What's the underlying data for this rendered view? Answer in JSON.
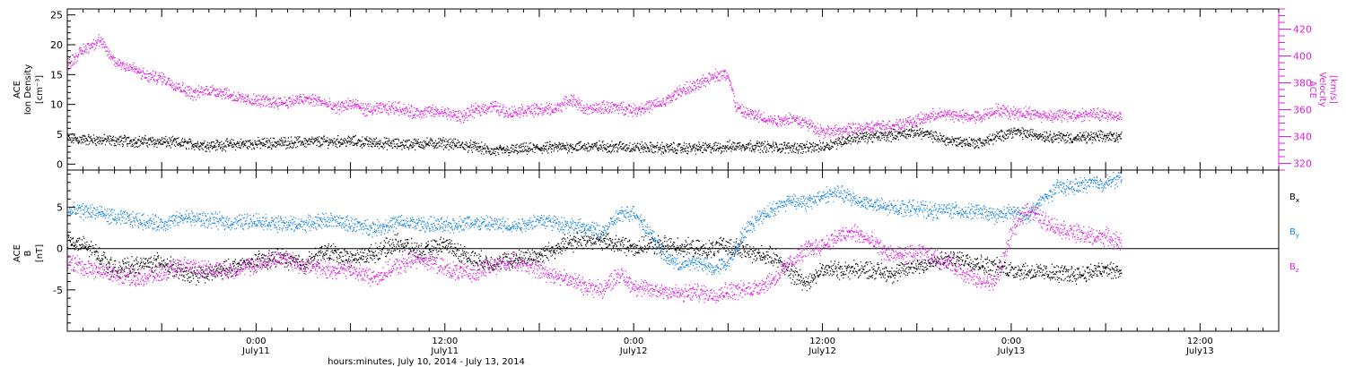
{
  "chart_data": [
    {
      "type": "scatter",
      "panel": "top",
      "left_axis": {
        "label_lines": [
          "ACE",
          "Ion Density",
          "[cm⁻³]"
        ],
        "ylim": [
          -1,
          26
        ],
        "ticks": [
          0,
          5,
          10,
          15,
          20,
          25
        ]
      },
      "right_axis": {
        "label_lines": [
          "ACE",
          "Velocity",
          "[km/s]"
        ],
        "ylim": [
          315,
          435
        ],
        "ticks": [
          320,
          340,
          360,
          380,
          400,
          420
        ]
      },
      "series": [
        {
          "axis": "left",
          "color": "#000000",
          "values": [
            [
              0,
              4.3
            ],
            [
              6,
              4.0
            ],
            [
              12,
              3.8
            ],
            [
              18,
              3.2
            ],
            [
              24,
              3.5
            ],
            [
              30,
              3.8
            ],
            [
              36,
              3.9
            ],
            [
              42,
              3.4
            ],
            [
              48,
              3.6
            ],
            [
              52,
              2.9
            ],
            [
              54,
              2.2
            ],
            [
              58,
              2.6
            ],
            [
              64,
              3.0
            ],
            [
              70,
              3.0
            ],
            [
              76,
              2.7
            ],
            [
              82,
              2.8
            ],
            [
              86,
              3.2
            ],
            [
              90,
              2.9
            ],
            [
              94,
              2.8
            ],
            [
              96,
              3.0
            ],
            [
              100,
              4.5
            ],
            [
              104,
              4.8
            ],
            [
              108,
              5.5
            ],
            [
              112,
              4.0
            ],
            [
              116,
              3.6
            ],
            [
              120,
              5.5
            ],
            [
              124,
              4.8
            ],
            [
              128,
              4.4
            ],
            [
              132,
              4.7
            ],
            [
              134,
              4.7
            ]
          ]
        },
        {
          "axis": "right",
          "color": "#e020e0",
          "values": [
            [
              0,
              394
            ],
            [
              2,
              405
            ],
            [
              4,
              412
            ],
            [
              6,
              396
            ],
            [
              8,
              392
            ],
            [
              10,
              385
            ],
            [
              12,
              384
            ],
            [
              14,
              378
            ],
            [
              16,
              372
            ],
            [
              18,
              375
            ],
            [
              20,
              373
            ],
            [
              22,
              368
            ],
            [
              24,
              367
            ],
            [
              26,
              366
            ],
            [
              28,
              366
            ],
            [
              30,
              368
            ],
            [
              32,
              367
            ],
            [
              34,
              361
            ],
            [
              36,
              365
            ],
            [
              38,
              360
            ],
            [
              40,
              361
            ],
            [
              42,
              362
            ],
            [
              44,
              358
            ],
            [
              46,
              359
            ],
            [
              48,
              358
            ],
            [
              50,
              355
            ],
            [
              52,
              360
            ],
            [
              54,
              363
            ],
            [
              56,
              358
            ],
            [
              58,
              360
            ],
            [
              60,
              360
            ],
            [
              62,
              361
            ],
            [
              64,
              368
            ],
            [
              66,
              360
            ],
            [
              68,
              362
            ],
            [
              70,
              362
            ],
            [
              72,
              360
            ],
            [
              74,
              363
            ],
            [
              76,
              366
            ],
            [
              78,
              375
            ],
            [
              80,
              378
            ],
            [
              82,
              386
            ],
            [
              84,
              386
            ],
            [
              85,
              362
            ],
            [
              86,
              358
            ],
            [
              88,
              355
            ],
            [
              90,
              352
            ],
            [
              92,
              354
            ],
            [
              94,
              350
            ],
            [
              96,
              344
            ],
            [
              98,
              344
            ],
            [
              100,
              346
            ],
            [
              102,
              347
            ],
            [
              104,
              348
            ],
            [
              106,
              350
            ],
            [
              108,
              352
            ],
            [
              110,
              356
            ],
            [
              112,
              357
            ],
            [
              114,
              355
            ],
            [
              116,
              355
            ],
            [
              118,
              360
            ],
            [
              120,
              358
            ],
            [
              122,
              358
            ],
            [
              124,
              356
            ],
            [
              126,
              356
            ],
            [
              128,
              356
            ],
            [
              130,
              357
            ],
            [
              132,
              356
            ],
            [
              134,
              356
            ]
          ]
        }
      ]
    },
    {
      "type": "scatter",
      "panel": "bottom",
      "left_axis": {
        "label_lines": [
          "ACE",
          "B",
          "[nT]"
        ],
        "ylim": [
          -10,
          9.5
        ],
        "ticks": [
          -5,
          0,
          5
        ]
      },
      "legend": [
        {
          "label": "B",
          "sub": "x",
          "color": "#000000"
        },
        {
          "label": "B",
          "sub": "y",
          "color": "#1e88e5"
        },
        {
          "label": "B",
          "sub": "z",
          "color": "#e020e0"
        }
      ],
      "series": [
        {
          "color": "#000000",
          "values": [
            [
              0,
              1.0
            ],
            [
              3,
              0.0
            ],
            [
              6,
              -2.5
            ],
            [
              9,
              -2.0
            ],
            [
              12,
              -1.5
            ],
            [
              15,
              -3.2
            ],
            [
              18,
              -3.0
            ],
            [
              21,
              -2.2
            ],
            [
              24,
              -1.5
            ],
            [
              27,
              -1.0
            ],
            [
              30,
              -1.8
            ],
            [
              33,
              -0.2
            ],
            [
              36,
              -1.2
            ],
            [
              39,
              -0.5
            ],
            [
              42,
              0.8
            ],
            [
              45,
              -0.5
            ],
            [
              48,
              0.6
            ],
            [
              51,
              -1.0
            ],
            [
              54,
              -1.8
            ],
            [
              57,
              -1.2
            ],
            [
              60,
              -0.8
            ],
            [
              63,
              0.5
            ],
            [
              66,
              1.2
            ],
            [
              69,
              0.8
            ],
            [
              72,
              0.2
            ],
            [
              75,
              0.5
            ],
            [
              78,
              0.3
            ],
            [
              81,
              -0.2
            ],
            [
              84,
              0.5
            ],
            [
              87,
              -0.5
            ],
            [
              90,
              -1.0
            ],
            [
              92,
              -3.0
            ],
            [
              94,
              -4.0
            ],
            [
              96,
              -2.5
            ],
            [
              99,
              -2.5
            ],
            [
              102,
              -2.5
            ],
            [
              105,
              -3.0
            ],
            [
              108,
              -2.0
            ],
            [
              111,
              -1.5
            ],
            [
              114,
              -1.2
            ],
            [
              117,
              -2.0
            ],
            [
              120,
              -2.5
            ],
            [
              123,
              -2.8
            ],
            [
              126,
              -3.0
            ],
            [
              129,
              -3.0
            ],
            [
              132,
              -2.5
            ],
            [
              134,
              -2.8
            ]
          ]
        },
        {
          "color": "#1e88e5",
          "values": [
            [
              0,
              4.5
            ],
            [
              3,
              4.6
            ],
            [
              6,
              3.8
            ],
            [
              9,
              3.5
            ],
            [
              12,
              3.0
            ],
            [
              15,
              3.8
            ],
            [
              18,
              3.5
            ],
            [
              21,
              3.2
            ],
            [
              24,
              3.5
            ],
            [
              27,
              3.0
            ],
            [
              30,
              3.0
            ],
            [
              33,
              3.5
            ],
            [
              36,
              3.0
            ],
            [
              39,
              2.5
            ],
            [
              42,
              3.2
            ],
            [
              45,
              3.0
            ],
            [
              48,
              2.8
            ],
            [
              51,
              3.2
            ],
            [
              54,
              3.0
            ],
            [
              57,
              2.8
            ],
            [
              60,
              3.5
            ],
            [
              63,
              3.0
            ],
            [
              66,
              2.5
            ],
            [
              68,
              2.0
            ],
            [
              70,
              4.0
            ],
            [
              72,
              4.5
            ],
            [
              74,
              2.0
            ],
            [
              76,
              -1.0
            ],
            [
              78,
              -2.0
            ],
            [
              80,
              -1.5
            ],
            [
              82,
              -2.5
            ],
            [
              84,
              -1.5
            ],
            [
              86,
              2.0
            ],
            [
              88,
              4.0
            ],
            [
              90,
              5.0
            ],
            [
              92,
              6.0
            ],
            [
              94,
              5.5
            ],
            [
              96,
              6.5
            ],
            [
              98,
              6.8
            ],
            [
              100,
              6.0
            ],
            [
              102,
              5.5
            ],
            [
              104,
              5.0
            ],
            [
              106,
              5.0
            ],
            [
              108,
              5.0
            ],
            [
              110,
              4.5
            ],
            [
              112,
              4.8
            ],
            [
              114,
              4.5
            ],
            [
              116,
              4.5
            ],
            [
              118,
              4.0
            ],
            [
              120,
              4.5
            ],
            [
              122,
              4.0
            ],
            [
              124,
              6.0
            ],
            [
              126,
              7.5
            ],
            [
              128,
              7.5
            ],
            [
              130,
              8.0
            ],
            [
              132,
              8.0
            ],
            [
              134,
              8.6
            ]
          ]
        },
        {
          "color": "#e020e0",
          "values": [
            [
              0,
              -1.5
            ],
            [
              3,
              -2.5
            ],
            [
              6,
              -3.0
            ],
            [
              9,
              -3.5
            ],
            [
              12,
              -3.0
            ],
            [
              15,
              -2.0
            ],
            [
              18,
              -2.5
            ],
            [
              21,
              -2.5
            ],
            [
              24,
              -2.0
            ],
            [
              27,
              -1.0
            ],
            [
              30,
              -2.0
            ],
            [
              33,
              -2.5
            ],
            [
              36,
              -2.5
            ],
            [
              39,
              -3.5
            ],
            [
              42,
              -2.0
            ],
            [
              45,
              -1.0
            ],
            [
              48,
              -2.5
            ],
            [
              51,
              -3.0
            ],
            [
              54,
              -2.0
            ],
            [
              57,
              -1.5
            ],
            [
              60,
              -2.5
            ],
            [
              63,
              -3.5
            ],
            [
              66,
              -4.5
            ],
            [
              68,
              -5.0
            ],
            [
              70,
              -3.0
            ],
            [
              72,
              -4.5
            ],
            [
              74,
              -5.0
            ],
            [
              76,
              -5.0
            ],
            [
              78,
              -5.5
            ],
            [
              80,
              -5.2
            ],
            [
              82,
              -5.5
            ],
            [
              84,
              -5.0
            ],
            [
              86,
              -5.0
            ],
            [
              88,
              -4.5
            ],
            [
              90,
              -3.5
            ],
            [
              92,
              -1.5
            ],
            [
              94,
              0.0
            ],
            [
              96,
              0.5
            ],
            [
              98,
              1.5
            ],
            [
              100,
              2.0
            ],
            [
              102,
              1.0
            ],
            [
              104,
              -0.5
            ],
            [
              106,
              -0.8
            ],
            [
              108,
              -0.5
            ],
            [
              110,
              -1.0
            ],
            [
              112,
              -1.5
            ],
            [
              114,
              -3.0
            ],
            [
              116,
              -4.0
            ],
            [
              118,
              -4.0
            ],
            [
              120,
              2.0
            ],
            [
              122,
              5.0
            ],
            [
              124,
              3.5
            ],
            [
              126,
              2.5
            ],
            [
              128,
              2.0
            ],
            [
              130,
              1.5
            ],
            [
              132,
              1.5
            ],
            [
              134,
              0.8
            ]
          ]
        }
      ]
    }
  ],
  "x_axis": {
    "ticks": [
      {
        "hours": 24,
        "line1": "0:00",
        "line2": "July11"
      },
      {
        "hours": 48,
        "line1": "12:00",
        "line2": "July11"
      },
      {
        "hours": 72,
        "line1": "0:00",
        "line2": "July12"
      },
      {
        "hours": 96,
        "line1": "12:00",
        "line2": "July12"
      },
      {
        "hours": 120,
        "line1": "0:00",
        "line2": "July13"
      },
      {
        "hours": 144,
        "line1": "12:00",
        "line2": "July13"
      }
    ],
    "caption": "hours:minutes, July 10, 2014 - July 13, 2014"
  }
}
